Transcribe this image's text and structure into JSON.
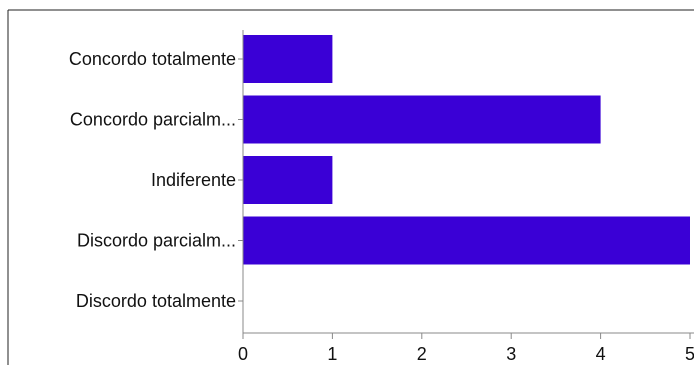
{
  "chart_data": {
    "type": "bar",
    "orientation": "horizontal",
    "categories": [
      "Concordo totalmente",
      "Concordo parcialm...",
      "Indiferente",
      "Discordo parcialm...",
      "Discordo totalmente"
    ],
    "values": [
      1,
      4,
      1,
      5,
      0
    ],
    "xlim": [
      0,
      5
    ],
    "xticks": [
      "0",
      "1",
      "2",
      "3",
      "4",
      "5"
    ],
    "title": "",
    "xlabel": "",
    "ylabel": "",
    "grid": false,
    "bar_color": "#3a00d6"
  }
}
